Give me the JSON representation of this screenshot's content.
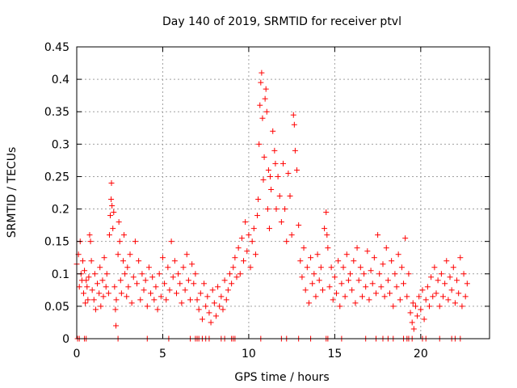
{
  "chart_data": {
    "type": "scatter",
    "title": "Day 140 of 2019, SRMTID for receiver ptvl",
    "xlabel": "GPS time / hours",
    "ylabel": "SRMTID / TECUs",
    "xlim": [
      0,
      24
    ],
    "ylim": [
      0,
      0.45
    ],
    "xticks": [
      "0",
      "5",
      "10",
      "15",
      "20"
    ],
    "yticks": [
      "0",
      "0.05",
      "0.1",
      "0.15",
      "0.2",
      "0.25",
      "0.3",
      "0.35",
      "0.4",
      "0.45"
    ],
    "grid": true,
    "marker": "plus",
    "series": [
      {
        "name": "SRMTID",
        "color": "#ff0000",
        "points": [
          [
            0.0,
            0.115
          ],
          [
            0.1,
            0.13
          ],
          [
            0.15,
            0.08
          ],
          [
            0.2,
            0.15
          ],
          [
            0.25,
            0.1
          ],
          [
            0.3,
            0.09
          ],
          [
            0.35,
            0.12
          ],
          [
            0.4,
            0.07
          ],
          [
            0.45,
            0.105
          ],
          [
            0.5,
            0.055
          ],
          [
            0.55,
            0.09
          ],
          [
            0.6,
            0.08
          ],
          [
            0.65,
            0.06
          ],
          [
            0.7,
            0.095
          ],
          [
            0.75,
            0.16
          ],
          [
            0.8,
            0.15
          ],
          [
            0.85,
            0.12
          ],
          [
            0.9,
            0.075
          ],
          [
            1.0,
            0.06
          ],
          [
            1.05,
            0.1
          ],
          [
            1.1,
            0.045
          ],
          [
            1.2,
            0.085
          ],
          [
            1.3,
            0.07
          ],
          [
            1.35,
            0.11
          ],
          [
            1.4,
            0.05
          ],
          [
            1.5,
            0.09
          ],
          [
            1.55,
            0.065
          ],
          [
            1.6,
            0.125
          ],
          [
            1.7,
            0.08
          ],
          [
            1.75,
            0.1
          ],
          [
            1.85,
            0.07
          ],
          [
            1.9,
            0.16
          ],
          [
            1.95,
            0.19
          ],
          [
            2.0,
            0.215
          ],
          [
            2.02,
            0.24
          ],
          [
            2.05,
            0.205
          ],
          [
            2.1,
            0.17
          ],
          [
            2.15,
            0.195
          ],
          [
            2.2,
            0.08
          ],
          [
            2.25,
            0.045
          ],
          [
            2.28,
            0.02
          ],
          [
            2.3,
            0.06
          ],
          [
            2.4,
            0.13
          ],
          [
            2.45,
            0.18
          ],
          [
            2.5,
            0.15
          ],
          [
            2.55,
            0.09
          ],
          [
            2.6,
            0.07
          ],
          [
            2.7,
            0.12
          ],
          [
            2.75,
            0.16
          ],
          [
            2.8,
            0.1
          ],
          [
            2.9,
            0.065
          ],
          [
            2.95,
            0.11
          ],
          [
            3.0,
            0.08
          ],
          [
            3.1,
            0.13
          ],
          [
            3.2,
            0.055
          ],
          [
            3.3,
            0.095
          ],
          [
            3.4,
            0.15
          ],
          [
            3.5,
            0.085
          ],
          [
            3.6,
            0.12
          ],
          [
            3.7,
            0.06
          ],
          [
            3.8,
            0.1
          ],
          [
            3.9,
            0.075
          ],
          [
            4.0,
            0.09
          ],
          [
            4.1,
            0.05
          ],
          [
            4.2,
            0.11
          ],
          [
            4.3,
            0.07
          ],
          [
            4.4,
            0.095
          ],
          [
            4.5,
            0.06
          ],
          [
            4.6,
            0.08
          ],
          [
            4.7,
            0.045
          ],
          [
            4.8,
            0.1
          ],
          [
            4.9,
            0.065
          ],
          [
            5.0,
            0.125
          ],
          [
            5.1,
            0.085
          ],
          [
            5.2,
            0.06
          ],
          [
            5.3,
            0.11
          ],
          [
            5.4,
            0.075
          ],
          [
            5.5,
            0.15
          ],
          [
            5.6,
            0.095
          ],
          [
            5.7,
            0.12
          ],
          [
            5.8,
            0.07
          ],
          [
            5.9,
            0.1
          ],
          [
            6.0,
            0.085
          ],
          [
            6.1,
            0.055
          ],
          [
            6.2,
            0.11
          ],
          [
            6.3,
            0.075
          ],
          [
            6.4,
            0.13
          ],
          [
            6.5,
            0.09
          ],
          [
            6.6,
            0.06
          ],
          [
            6.7,
            0.115
          ],
          [
            6.8,
            0.085
          ],
          [
            6.9,
            0.1
          ],
          [
            7.0,
            0.06
          ],
          [
            7.1,
            0.045
          ],
          [
            7.2,
            0.07
          ],
          [
            7.3,
            0.03
          ],
          [
            7.4,
            0.085
          ],
          [
            7.5,
            0.05
          ],
          [
            7.6,
            0.065
          ],
          [
            7.7,
            0.04
          ],
          [
            7.8,
            0.025
          ],
          [
            7.9,
            0.075
          ],
          [
            8.0,
            0.055
          ],
          [
            8.1,
            0.035
          ],
          [
            8.2,
            0.08
          ],
          [
            8.3,
            0.05
          ],
          [
            8.4,
            0.065
          ],
          [
            8.5,
            0.045
          ],
          [
            8.6,
            0.09
          ],
          [
            8.7,
            0.06
          ],
          [
            8.8,
            0.075
          ],
          [
            8.9,
            0.1
          ],
          [
            9.0,
            0.085
          ],
          [
            9.1,
            0.11
          ],
          [
            9.2,
            0.125
          ],
          [
            9.3,
            0.095
          ],
          [
            9.4,
            0.14
          ],
          [
            9.5,
            0.1
          ],
          [
            9.6,
            0.155
          ],
          [
            9.7,
            0.12
          ],
          [
            9.8,
            0.18
          ],
          [
            9.9,
            0.135
          ],
          [
            10.0,
            0.16
          ],
          [
            10.1,
            0.11
          ],
          [
            10.2,
            0.15
          ],
          [
            10.3,
            0.17
          ],
          [
            10.4,
            0.13
          ],
          [
            10.5,
            0.19
          ],
          [
            10.55,
            0.215
          ],
          [
            10.6,
            0.3
          ],
          [
            10.65,
            0.36
          ],
          [
            10.7,
            0.395
          ],
          [
            10.75,
            0.41
          ],
          [
            10.8,
            0.34
          ],
          [
            10.85,
            0.245
          ],
          [
            10.9,
            0.28
          ],
          [
            10.95,
            0.37
          ],
          [
            11.0,
            0.385
          ],
          [
            11.05,
            0.35
          ],
          [
            11.1,
            0.2
          ],
          [
            11.15,
            0.26
          ],
          [
            11.2,
            0.17
          ],
          [
            11.25,
            0.25
          ],
          [
            11.3,
            0.23
          ],
          [
            11.4,
            0.32
          ],
          [
            11.5,
            0.29
          ],
          [
            11.55,
            0.27
          ],
          [
            11.6,
            0.2
          ],
          [
            11.7,
            0.25
          ],
          [
            11.8,
            0.22
          ],
          [
            11.9,
            0.18
          ],
          [
            12.0,
            0.27
          ],
          [
            12.1,
            0.2
          ],
          [
            12.2,
            0.15
          ],
          [
            12.3,
            0.255
          ],
          [
            12.4,
            0.22
          ],
          [
            12.5,
            0.16
          ],
          [
            12.6,
            0.345
          ],
          [
            12.65,
            0.33
          ],
          [
            12.7,
            0.29
          ],
          [
            12.8,
            0.26
          ],
          [
            12.9,
            0.175
          ],
          [
            13.0,
            0.12
          ],
          [
            13.1,
            0.095
          ],
          [
            13.2,
            0.14
          ],
          [
            13.3,
            0.075
          ],
          [
            13.4,
            0.11
          ],
          [
            13.5,
            0.055
          ],
          [
            13.6,
            0.125
          ],
          [
            13.7,
            0.085
          ],
          [
            13.8,
            0.1
          ],
          [
            13.9,
            0.065
          ],
          [
            14.0,
            0.13
          ],
          [
            14.1,
            0.09
          ],
          [
            14.2,
            0.11
          ],
          [
            14.3,
            0.075
          ],
          [
            14.4,
            0.17
          ],
          [
            14.5,
            0.195
          ],
          [
            14.55,
            0.16
          ],
          [
            14.6,
            0.14
          ],
          [
            14.7,
            0.08
          ],
          [
            14.8,
            0.11
          ],
          [
            14.9,
            0.06
          ],
          [
            15.0,
            0.095
          ],
          [
            15.1,
            0.07
          ],
          [
            15.2,
            0.12
          ],
          [
            15.3,
            0.05
          ],
          [
            15.4,
            0.085
          ],
          [
            15.5,
            0.11
          ],
          [
            15.6,
            0.065
          ],
          [
            15.7,
            0.13
          ],
          [
            15.8,
            0.09
          ],
          [
            15.9,
            0.1
          ],
          [
            16.0,
            0.075
          ],
          [
            16.1,
            0.12
          ],
          [
            16.2,
            0.055
          ],
          [
            16.3,
            0.14
          ],
          [
            16.4,
            0.09
          ],
          [
            16.5,
            0.11
          ],
          [
            16.6,
            0.065
          ],
          [
            16.7,
            0.1
          ],
          [
            16.8,
            0.08
          ],
          [
            16.9,
            0.135
          ],
          [
            17.0,
            0.06
          ],
          [
            17.1,
            0.105
          ],
          [
            17.2,
            0.085
          ],
          [
            17.3,
            0.125
          ],
          [
            17.4,
            0.07
          ],
          [
            17.5,
            0.16
          ],
          [
            17.6,
            0.1
          ],
          [
            17.7,
            0.08
          ],
          [
            17.8,
            0.115
          ],
          [
            17.9,
            0.065
          ],
          [
            18.0,
            0.14
          ],
          [
            18.1,
            0.09
          ],
          [
            18.2,
            0.07
          ],
          [
            18.3,
            0.12
          ],
          [
            18.4,
            0.05
          ],
          [
            18.5,
            0.1
          ],
          [
            18.6,
            0.08
          ],
          [
            18.7,
            0.13
          ],
          [
            18.8,
            0.06
          ],
          [
            18.9,
            0.11
          ],
          [
            19.0,
            0.085
          ],
          [
            19.1,
            0.155
          ],
          [
            19.2,
            0.065
          ],
          [
            19.3,
            0.1
          ],
          [
            19.4,
            0.04
          ],
          [
            19.5,
            0.025
          ],
          [
            19.55,
            0.055
          ],
          [
            19.6,
            0.015
          ],
          [
            19.7,
            0.05
          ],
          [
            19.8,
            0.035
          ],
          [
            19.9,
            0.065
          ],
          [
            20.0,
            0.045
          ],
          [
            20.1,
            0.075
          ],
          [
            20.2,
            0.03
          ],
          [
            20.3,
            0.06
          ],
          [
            20.4,
            0.08
          ],
          [
            20.5,
            0.05
          ],
          [
            20.6,
            0.095
          ],
          [
            20.7,
            0.065
          ],
          [
            20.8,
            0.11
          ],
          [
            20.9,
            0.07
          ],
          [
            21.0,
            0.09
          ],
          [
            21.1,
            0.05
          ],
          [
            21.2,
            0.1
          ],
          [
            21.3,
            0.065
          ],
          [
            21.4,
            0.085
          ],
          [
            21.5,
            0.12
          ],
          [
            21.6,
            0.06
          ],
          [
            21.7,
            0.095
          ],
          [
            21.8,
            0.075
          ],
          [
            21.9,
            0.11
          ],
          [
            22.0,
            0.055
          ],
          [
            22.1,
            0.09
          ],
          [
            22.2,
            0.07
          ],
          [
            22.3,
            0.125
          ],
          [
            22.4,
            0.05
          ],
          [
            22.5,
            0.1
          ],
          [
            22.6,
            0.065
          ],
          [
            22.7,
            0.085
          ]
        ]
      }
    ],
    "zero_points_x": [
      0.05,
      0.15,
      0.45,
      0.55,
      2.4,
      4.1,
      5.35,
      6.6,
      6.9,
      7.0,
      7.1,
      7.3,
      7.5,
      7.7,
      8.4,
      8.6,
      9.0,
      9.1,
      9.2,
      10.7,
      11.9,
      12.2,
      12.9,
      13.6,
      14.5,
      14.6,
      15.4,
      16.8,
      17.4,
      17.8,
      18.1,
      18.4,
      19.0,
      19.2,
      19.3,
      19.5,
      20.1,
      20.3,
      21.1,
      21.8,
      22.0,
      22.3
    ]
  }
}
